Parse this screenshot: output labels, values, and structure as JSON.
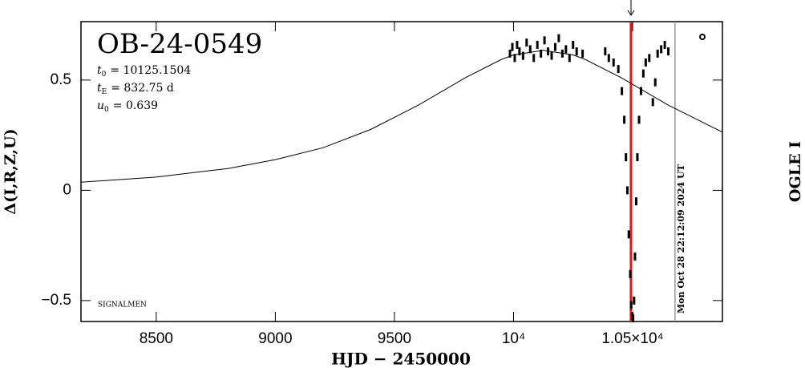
{
  "chart_data": {
    "type": "scatter",
    "title": "OB-24-0549",
    "x_label": "HJD − 2450000",
    "y_label": "Δ(I,R,Z,U)",
    "right_label": "OGLE I",
    "footer_note": "SIGNALMEN",
    "parameters": [
      {
        "symbol": "t",
        "subscript": "0",
        "text": "= 10125.1504"
      },
      {
        "symbol": "t",
        "subscript": "E",
        "text": "= 832.75 d"
      },
      {
        "symbol": "u",
        "subscript": "0",
        "text": "= 0.639"
      }
    ],
    "xlim": [
      8184,
      10877
    ],
    "ylim": [
      -0.595,
      0.765
    ],
    "xticks": [
      8500,
      9000,
      9500,
      {
        "value": 10000,
        "label": "10⁴"
      },
      {
        "value": 10500,
        "label": "1.05×10⁴"
      }
    ],
    "yticks": [
      {
        "value": -0.5,
        "label": "−0.5"
      },
      0,
      0.5
    ],
    "model": {
      "color": "#000000",
      "x": [
        8184,
        8500,
        8800,
        9000,
        9200,
        9400,
        9600,
        9800,
        9950,
        10000,
        10125,
        10250,
        10300,
        10450,
        10650,
        10877
      ],
      "y": [
        0.037,
        0.06,
        0.099,
        0.139,
        0.193,
        0.276,
        0.386,
        0.512,
        0.594,
        0.614,
        0.635,
        0.614,
        0.594,
        0.512,
        0.386,
        0.264
      ]
    },
    "points": {
      "color": "#000000",
      "x": [
        9985,
        9995,
        10005,
        10015,
        10025,
        10040,
        10055,
        10070,
        10085,
        10100,
        10115,
        10130,
        10145,
        10160,
        10175,
        10190,
        10205,
        10220,
        10235,
        10250,
        10265,
        10290,
        10385,
        10400,
        10420,
        10440,
        10455,
        10465,
        10472,
        10478,
        10484,
        10490,
        10494,
        10498,
        10502,
        10506,
        10510,
        10515,
        10520,
        10527,
        10535,
        10545,
        10555,
        10570,
        10585,
        10595,
        10605,
        10620,
        10635,
        10650
      ],
      "y": [
        0.62,
        0.65,
        0.6,
        0.66,
        0.63,
        0.61,
        0.67,
        0.64,
        0.6,
        0.66,
        0.62,
        0.68,
        0.63,
        0.61,
        0.65,
        0.69,
        0.62,
        0.64,
        0.6,
        0.66,
        0.63,
        0.62,
        0.63,
        0.6,
        0.58,
        0.55,
        0.45,
        0.32,
        0.15,
        0.0,
        -0.2,
        -0.38,
        -0.52,
        -0.57,
        -0.58,
        -0.5,
        -0.3,
        -0.05,
        0.15,
        0.32,
        0.45,
        0.53,
        0.58,
        0.6,
        0.4,
        0.49,
        0.62,
        0.64,
        0.66,
        0.63
      ]
    },
    "markers": [
      {
        "x": 10493,
        "color": "#ee1111"
      },
      {
        "x": 10678,
        "color": "#999999",
        "label": "Mon Oct 28 22:12:09 2024 UT"
      }
    ]
  }
}
